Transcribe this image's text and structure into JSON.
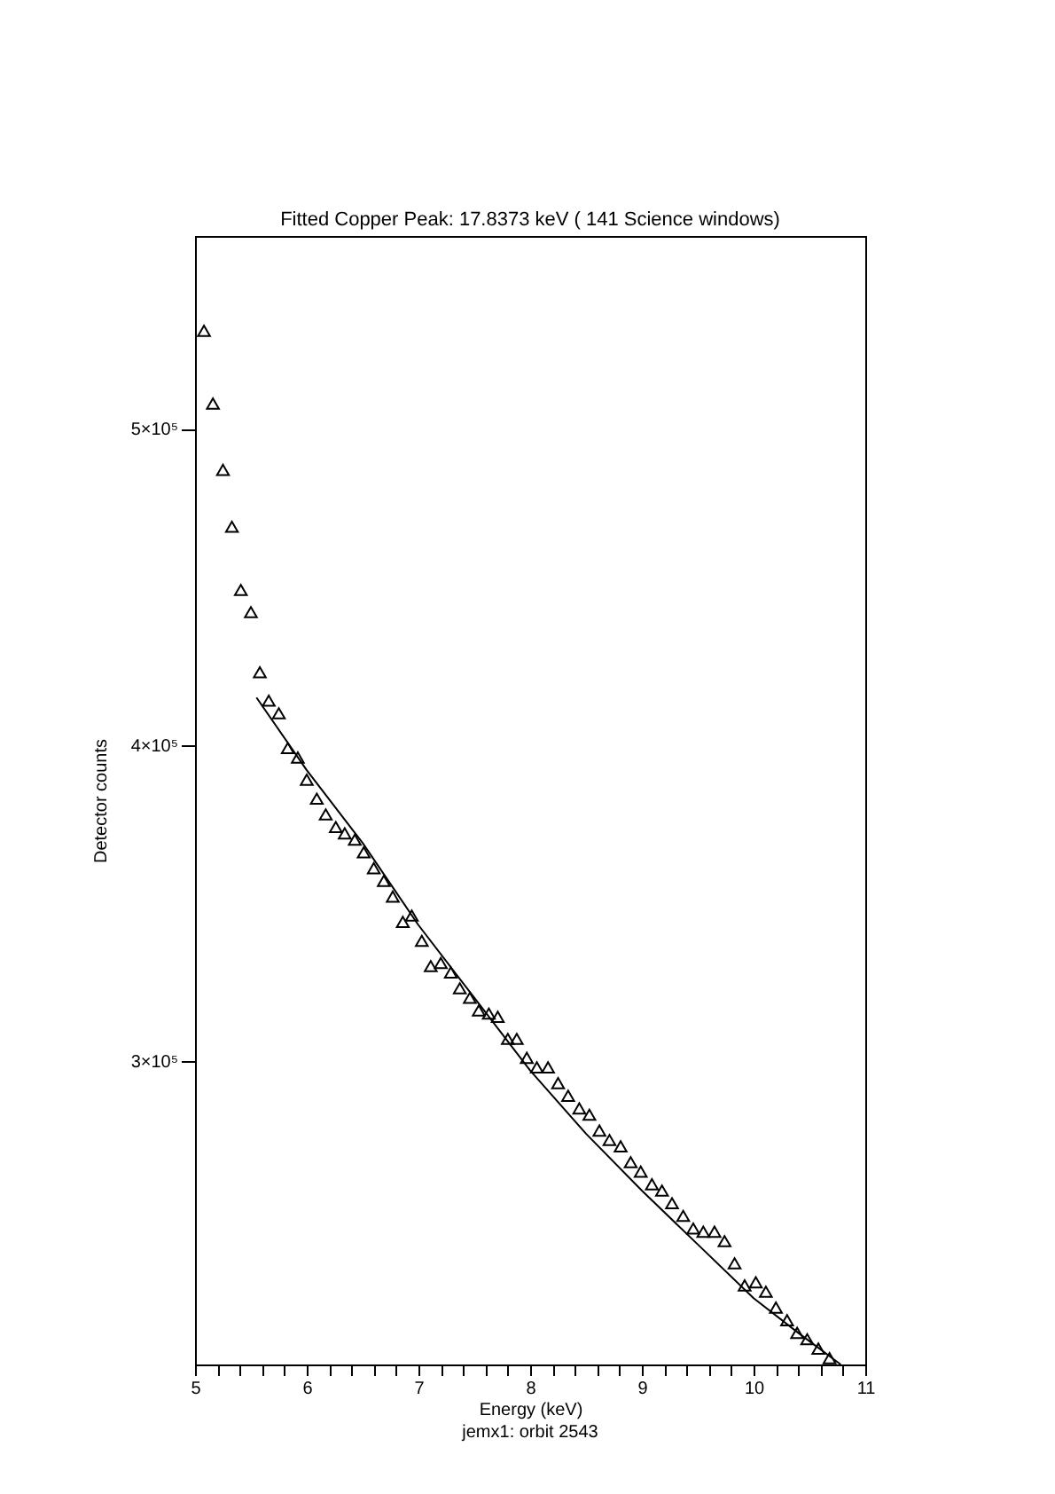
{
  "chart_data": {
    "type": "scatter",
    "title": "Fitted Copper Peak: 17.8373 keV ( 141 Science windows)",
    "xlabel": "Energy (keV)",
    "ylabel": "Detector counts",
    "annotations": [
      "jemx1: orbit 2543"
    ],
    "xlim": [
      5,
      11
    ],
    "ylim": [
      204000,
      561000
    ],
    "xticks": [
      5,
      {
        "value": 5.2,
        "label": null
      },
      {
        "value": 5.4,
        "label": null
      },
      {
        "value": 5.6,
        "label": null
      },
      {
        "value": 5.8,
        "label": null
      },
      6,
      {
        "value": 6.2,
        "label": null
      },
      {
        "value": 6.4,
        "label": null
      },
      {
        "value": 6.6,
        "label": null
      },
      {
        "value": 6.8,
        "label": null
      },
      7,
      {
        "value": 7.2,
        "label": null
      },
      {
        "value": 7.4,
        "label": null
      },
      {
        "value": 7.6,
        "label": null
      },
      {
        "value": 7.8,
        "label": null
      },
      8,
      {
        "value": 8.2,
        "label": null
      },
      {
        "value": 8.4,
        "label": null
      },
      {
        "value": 8.6,
        "label": null
      },
      {
        "value": 8.8,
        "label": null
      },
      9,
      {
        "value": 9.2,
        "label": null
      },
      {
        "value": 9.4,
        "label": null
      },
      {
        "value": 9.6,
        "label": null
      },
      {
        "value": 9.8,
        "label": null
      },
      10,
      {
        "value": 10.2,
        "label": null
      },
      {
        "value": 10.4,
        "label": null
      },
      {
        "value": 10.6,
        "label": null
      },
      {
        "value": 10.8,
        "label": null
      },
      11
    ],
    "yticks": [
      {
        "value": 300000,
        "label": "3×10⁵"
      },
      {
        "value": 400000,
        "label": "4×10⁵"
      },
      {
        "value": 500000,
        "label": "5×10⁵"
      }
    ],
    "grid": false,
    "legend": false,
    "marker": "triangle",
    "line_style": "solid",
    "series": [
      {
        "color": "#000000",
        "x": [
          5.08,
          5.16,
          5.25,
          5.33,
          5.41,
          5.5,
          5.58,
          5.66,
          5.75,
          5.83,
          5.92,
          6.0,
          6.09,
          6.17,
          6.26,
          6.34,
          6.43,
          6.51,
          6.6,
          6.69,
          6.77,
          6.86,
          6.94,
          7.03,
          7.11,
          7.2,
          7.29,
          7.37,
          7.46,
          7.54,
          7.63,
          7.71,
          7.8,
          7.88,
          7.97,
          8.06,
          8.16,
          8.25,
          8.34,
          8.44,
          8.53,
          8.62,
          8.71,
          8.81,
          8.9,
          8.99,
          9.09,
          9.18,
          9.27,
          9.37,
          9.46,
          9.55,
          9.65,
          9.74,
          9.83,
          9.92,
          10.02,
          10.11,
          10.2,
          10.3,
          10.39,
          10.48,
          10.58,
          10.68
        ],
        "values": [
          531000,
          508000,
          487000,
          469000,
          449000,
          442000,
          423000,
          414000,
          410000,
          399000,
          396000,
          389000,
          383000,
          378000,
          374000,
          372000,
          370000,
          366000,
          361000,
          357000,
          352000,
          344000,
          346000,
          338000,
          330000,
          331000,
          328000,
          323000,
          320000,
          316000,
          315000,
          314000,
          307000,
          307000,
          301000,
          298000,
          298000,
          293000,
          289000,
          285000,
          283000,
          278000,
          275000,
          273000,
          268000,
          265000,
          261000,
          259000,
          255000,
          251000,
          247000,
          246000,
          246000,
          243000,
          236000,
          229000,
          230000,
          227000,
          222000,
          218000,
          214000,
          212000,
          209000,
          206000
        ]
      },
      {
        "type": "line",
        "color": "#000000",
        "marker": "none",
        "x": [
          5.55,
          6.0,
          6.5,
          7.0,
          7.5,
          8.0,
          8.5,
          9.0,
          9.5,
          10.0,
          10.4,
          10.78
        ],
        "values": [
          415000,
          392000,
          369000,
          343000,
          320000,
          297000,
          277000,
          259000,
          242000,
          225000,
          214000,
          204000
        ]
      }
    ]
  }
}
